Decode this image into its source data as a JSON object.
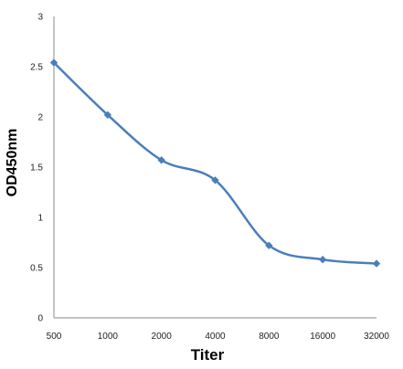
{
  "chart_data": {
    "type": "line",
    "title": "",
    "xlabel": "Titer",
    "ylabel": "OD450nm",
    "categories": [
      "500",
      "1000",
      "2000",
      "4000",
      "8000",
      "16000",
      "32000"
    ],
    "series": [
      {
        "values": [
          2.54,
          2.02,
          1.57,
          1.37,
          0.72,
          0.58,
          0.54
        ]
      }
    ],
    "ylim": [
      0,
      3
    ],
    "yticks": [
      "0",
      "0.5",
      "1",
      "1.5",
      "2",
      "2.5",
      "3"
    ],
    "grid": false,
    "legend": "none",
    "marker": "diamond",
    "smooth": true,
    "line_color": "#4a7ebb"
  }
}
